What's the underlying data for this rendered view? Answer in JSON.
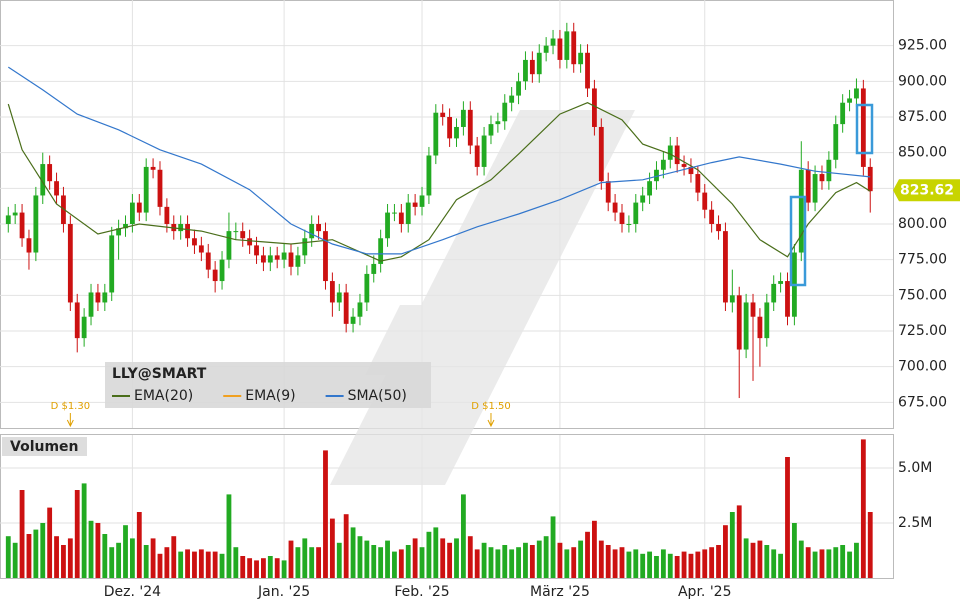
{
  "chart_data": {
    "type": "candlestick",
    "ticker": "LLY@SMART",
    "open": [
      800,
      806,
      808,
      790,
      780,
      820,
      842,
      830,
      820,
      800,
      745,
      720,
      735,
      752,
      745,
      752,
      792,
      797,
      800,
      815,
      808,
      840,
      838,
      812,
      800,
      795,
      800,
      790,
      785,
      780,
      768,
      760,
      775,
      795,
      795,
      790,
      785,
      778,
      773,
      778,
      775,
      780,
      770,
      778,
      790,
      800,
      795,
      760,
      745,
      752,
      730,
      735,
      745,
      765,
      772,
      790,
      808,
      808,
      800,
      815,
      812,
      820,
      848,
      878,
      875,
      860,
      868,
      880,
      855,
      840,
      862,
      870,
      872,
      885,
      890,
      900,
      915,
      905,
      920,
      925,
      930,
      915,
      935,
      912,
      920,
      895,
      868,
      830,
      815,
      808,
      800,
      800,
      815,
      820,
      830,
      838,
      845,
      855,
      842,
      840,
      835,
      822,
      810,
      800,
      795,
      745,
      750,
      712,
      745,
      735,
      720,
      745,
      758,
      760,
      735,
      780,
      838,
      815,
      835,
      830,
      845,
      870,
      885,
      888,
      895,
      840
    ],
    "high": [
      812,
      814,
      814,
      796,
      826,
      850,
      848,
      836,
      826,
      806,
      751,
      741,
      758,
      758,
      758,
      798,
      803,
      806,
      821,
      821,
      846,
      846,
      844,
      818,
      806,
      806,
      806,
      796,
      791,
      786,
      774,
      781,
      808,
      801,
      801,
      796,
      791,
      784,
      784,
      784,
      786,
      786,
      784,
      796,
      806,
      806,
      801,
      766,
      758,
      758,
      741,
      751,
      771,
      778,
      796,
      814,
      814,
      814,
      821,
      821,
      826,
      854,
      884,
      884,
      881,
      874,
      886,
      886,
      861,
      868,
      876,
      878,
      891,
      896,
      906,
      921,
      921,
      926,
      931,
      936,
      936,
      941,
      941,
      926,
      926,
      901,
      874,
      836,
      821,
      814,
      806,
      821,
      826,
      836,
      844,
      851,
      861,
      861,
      848,
      846,
      841,
      828,
      816,
      806,
      801,
      768,
      756,
      751,
      751,
      741,
      751,
      764,
      766,
      766,
      786,
      858,
      844,
      841,
      841,
      851,
      876,
      891,
      894,
      902,
      901,
      846
    ],
    "low": [
      794,
      800,
      784,
      768,
      774,
      814,
      824,
      814,
      794,
      739,
      710,
      714,
      729,
      739,
      739,
      746,
      775,
      791,
      794,
      802,
      802,
      832,
      806,
      794,
      789,
      789,
      784,
      779,
      774,
      762,
      752,
      754,
      769,
      789,
      784,
      779,
      772,
      767,
      767,
      769,
      769,
      764,
      764,
      772,
      784,
      789,
      754,
      735,
      739,
      724,
      724,
      729,
      739,
      759,
      766,
      784,
      802,
      794,
      794,
      806,
      806,
      814,
      842,
      869,
      854,
      854,
      862,
      849,
      834,
      834,
      856,
      864,
      866,
      879,
      884,
      894,
      899,
      899,
      914,
      919,
      909,
      909,
      906,
      906,
      889,
      862,
      824,
      809,
      802,
      794,
      794,
      794,
      809,
      814,
      824,
      832,
      839,
      836,
      834,
      829,
      816,
      804,
      794,
      789,
      739,
      738,
      678,
      706,
      690,
      700,
      714,
      739,
      752,
      729,
      729,
      774,
      809,
      809,
      824,
      824,
      839,
      864,
      879,
      882,
      834,
      808
    ],
    "close": [
      806,
      808,
      790,
      780,
      820,
      842,
      830,
      820,
      800,
      745,
      720,
      735,
      752,
      745,
      752,
      792,
      797,
      800,
      815,
      808,
      840,
      838,
      812,
      800,
      795,
      800,
      790,
      785,
      780,
      768,
      760,
      775,
      795,
      795,
      790,
      785,
      778,
      773,
      778,
      775,
      780,
      770,
      778,
      790,
      800,
      795,
      760,
      745,
      752,
      730,
      735,
      745,
      765,
      772,
      790,
      808,
      808,
      800,
      815,
      812,
      820,
      848,
      878,
      875,
      860,
      868,
      880,
      855,
      840,
      862,
      870,
      872,
      885,
      890,
      900,
      915,
      905,
      920,
      925,
      930,
      915,
      935,
      912,
      920,
      895,
      868,
      830,
      815,
      808,
      800,
      800,
      815,
      820,
      830,
      838,
      845,
      855,
      842,
      840,
      835,
      822,
      810,
      800,
      795,
      745,
      750,
      712,
      745,
      735,
      720,
      745,
      758,
      760,
      735,
      780,
      838,
      815,
      835,
      830,
      845,
      870,
      885,
      888,
      895,
      840,
      823
    ],
    "up_color": "#22aa22",
    "down_color": "#cc1111",
    "ylim": [
      657,
      957
    ],
    "yticks": [
      {
        "value": 675,
        "label": "675.00"
      },
      {
        "value": 700,
        "label": "700.00"
      },
      {
        "value": 725,
        "label": "725.00"
      },
      {
        "value": 750,
        "label": "750.00"
      },
      {
        "value": 775,
        "label": "775.00"
      },
      {
        "value": 800,
        "label": "800.00"
      },
      {
        "value": 825,
        "label": "825.00"
      },
      {
        "value": 850,
        "label": "850.00"
      },
      {
        "value": 875,
        "label": "875.00"
      },
      {
        "value": 900,
        "label": "900.00"
      },
      {
        "value": 925,
        "label": "925.00"
      }
    ],
    "xlim": [
      -1.2,
      128.3
    ],
    "xticks": [
      {
        "value": 18,
        "label": "Dez. '24"
      },
      {
        "value": 40,
        "label": "Jan. '25"
      },
      {
        "value": 60,
        "label": "Feb. '25"
      },
      {
        "value": 80,
        "label": "März '25"
      },
      {
        "value": 101,
        "label": "Apr. '25"
      }
    ],
    "grid": true,
    "last_price": 823.62,
    "overlays": [
      {
        "name": "EMA(20)",
        "color": "#4a6e1a",
        "x": [
          0,
          2,
          7,
          13,
          19,
          28,
          33,
          41,
          47,
          54,
          57,
          61,
          65,
          70,
          74,
          80,
          84,
          89,
          92,
          96,
          100,
          105,
          109,
          113,
          116,
          120,
          123,
          125
        ],
        "values": [
          884,
          852,
          814,
          793,
          800,
          795,
          789,
          786,
          789,
          774,
          777,
          789,
          817,
          831,
          849,
          877,
          885,
          873,
          856,
          849,
          838,
          814,
          789,
          777,
          800,
          822,
          829,
          823
        ]
      },
      {
        "name": "EMA(9)",
        "color": "#f0a020",
        "x": [],
        "values": []
      },
      {
        "name": "SMA(50)",
        "color": "#3377cc",
        "x": [
          0,
          5,
          10,
          16,
          22,
          28,
          35,
          41,
          47,
          52,
          57,
          63,
          68,
          74,
          80,
          86,
          92,
          97,
          102,
          106,
          112,
          117,
          125
        ],
        "values": [
          910,
          894,
          877,
          866,
          852,
          842,
          824,
          800,
          786,
          779,
          779,
          789,
          798,
          807,
          817,
          829,
          831,
          837,
          843,
          847,
          842,
          837,
          833
        ]
      }
    ],
    "dividends": [
      {
        "index": 9,
        "label": "D $1.30"
      },
      {
        "index": 70,
        "label": "D $1.50"
      }
    ],
    "volume": {
      "title": "Volumen",
      "values": [
        1.9,
        1.6,
        4.0,
        2.0,
        2.2,
        2.5,
        3.2,
        1.9,
        1.5,
        1.8,
        4.0,
        4.3,
        2.6,
        2.5,
        2.0,
        1.4,
        1.6,
        2.4,
        1.8,
        3.0,
        1.5,
        1.8,
        1.1,
        1.4,
        1.9,
        1.2,
        1.3,
        1.2,
        1.3,
        1.2,
        1.2,
        1.1,
        3.8,
        1.4,
        1.0,
        0.9,
        0.8,
        0.9,
        1.0,
        0.9,
        0.8,
        1.7,
        1.4,
        1.8,
        1.4,
        1.4,
        5.8,
        2.7,
        1.6,
        2.9,
        2.3,
        1.9,
        1.7,
        1.5,
        1.4,
        1.7,
        1.2,
        1.3,
        1.5,
        1.8,
        1.4,
        2.1,
        2.3,
        1.8,
        1.6,
        1.8,
        3.8,
        1.9,
        1.3,
        1.6,
        1.4,
        1.3,
        1.5,
        1.3,
        1.4,
        1.6,
        1.5,
        1.7,
        1.9,
        2.8,
        1.6,
        1.3,
        1.4,
        1.7,
        2.1,
        2.6,
        1.7,
        1.5,
        1.3,
        1.4,
        1.2,
        1.3,
        1.1,
        1.2,
        1.0,
        1.3,
        1.1,
        1.0,
        1.2,
        1.1,
        1.2,
        1.3,
        1.4,
        1.5,
        2.4,
        3.0,
        3.3,
        1.8,
        1.6,
        1.7,
        1.5,
        1.3,
        1.1,
        5.5,
        2.5,
        1.7,
        1.4,
        1.2,
        1.3,
        1.3,
        1.4,
        1.5,
        1.2,
        1.6,
        6.3,
        3.0
      ],
      "ylim": [
        0,
        6.5
      ],
      "yticks": [
        {
          "value": 2.5,
          "label": "2.5M"
        },
        {
          "value": 5,
          "label": "5.0M"
        }
      ]
    }
  }
}
